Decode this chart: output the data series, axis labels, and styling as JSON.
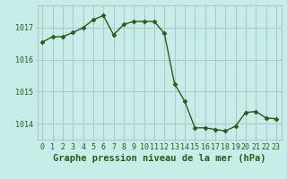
{
  "x": [
    0,
    1,
    2,
    3,
    4,
    5,
    6,
    7,
    8,
    9,
    10,
    11,
    12,
    13,
    14,
    15,
    16,
    17,
    18,
    19,
    20,
    21,
    22,
    23
  ],
  "y": [
    1016.55,
    1016.72,
    1016.72,
    1016.85,
    1017.0,
    1017.25,
    1017.38,
    1016.78,
    1017.1,
    1017.2,
    1017.2,
    1017.2,
    1016.82,
    1015.25,
    1014.7,
    1013.87,
    1013.87,
    1013.82,
    1013.77,
    1013.92,
    1014.35,
    1014.38,
    1014.18,
    1014.15
  ],
  "line_color": "#2d5a1b",
  "marker": "D",
  "marker_size": 2.5,
  "bg_color": "#c8ece8",
  "grid_color": "#b0c8c8",
  "text_color": "#2d5a1b",
  "xlabel": "Graphe pression niveau de la mer (hPa)",
  "ylim": [
    1013.5,
    1017.7
  ],
  "yticks": [
    1014,
    1015,
    1016,
    1017
  ],
  "xlim": [
    -0.5,
    23.5
  ],
  "tick_fontsize": 6,
  "xlabel_fontsize": 7.5
}
